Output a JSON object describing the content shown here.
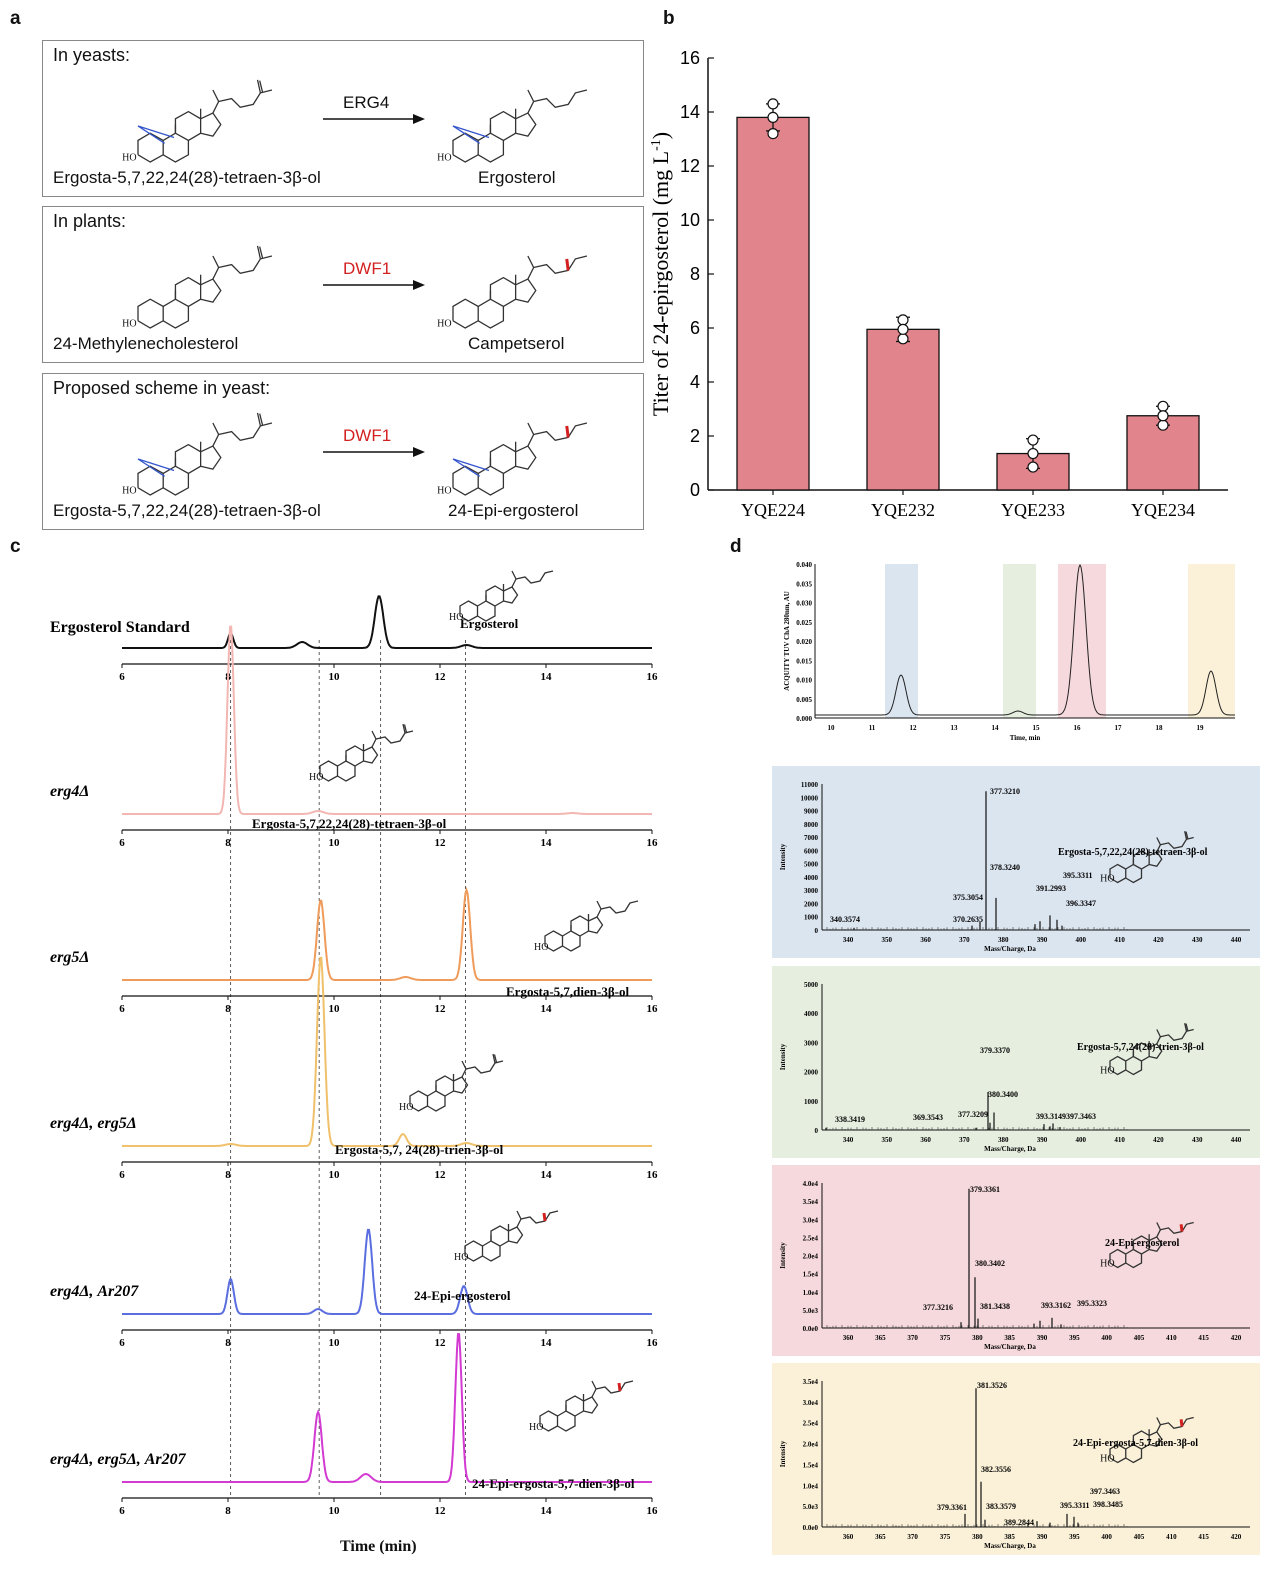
{
  "panel_labels": {
    "a": "a",
    "b": "b",
    "c": "c",
    "d": "d"
  },
  "panel_a": {
    "box1": {
      "header": "In yeasts:",
      "enzyme": "ERG4",
      "substrate": "Ergosta-5,7,22,24(28)-tetraen-3β-ol",
      "product": "Ergosterol",
      "ho": "HO"
    },
    "box2": {
      "header": "In plants:",
      "enzyme": "DWF1",
      "substrate": "24-Methylenecholesterol",
      "product": "Campetserol",
      "ho": "HO"
    },
    "box3": {
      "header": "Proposed scheme in yeast:",
      "enzyme": "DWF1",
      "substrate": "Ergosta-5,7,22,24(28)-tetraen-3β-ol",
      "product": "24-Epi-ergosterol",
      "ho": "HO"
    }
  },
  "panel_c": {
    "traces": [
      {
        "label": "Ergosterol Standard",
        "italic": false,
        "color": "#111111",
        "compound": "Ergosterol"
      },
      {
        "label": "erg4Δ",
        "italic": true,
        "color": "#f2b7b3",
        "compound": "Ergosta-5,7,22,24(28)-tetraen-3β-ol"
      },
      {
        "label": "erg5Δ",
        "italic": true,
        "color": "#ee9b5b",
        "compound": "Ergosta-5,7,dien-3β-ol"
      },
      {
        "label": "erg4Δ, erg5Δ",
        "italic": true,
        "color": "#f0c06a",
        "compound": "Ergosta-5,7, 24(28)-trien-3β-ol"
      },
      {
        "label": "erg4Δ, Ar207",
        "italic": true,
        "color": "#5a6ee0",
        "compound": "24-Epi-ergosterol"
      },
      {
        "label": "erg4Δ, erg5Δ, Ar207",
        "italic": true,
        "color": "#d23ad2",
        "compound": "24-Epi-ergosta-5,7-dien-3β-ol"
      }
    ],
    "ticks": [
      "6",
      "8",
      "10",
      "12",
      "14",
      "16"
    ],
    "xlabel": "Time (min)",
    "ho": "HO"
  },
  "panel_d": {
    "uv": {
      "ylabel": "ACQUITY TUV ChA 280nm, AU",
      "xlabel": "Time, min",
      "yticks": [
        "0.000",
        "0.005",
        "0.010",
        "0.015",
        "0.020",
        "0.025",
        "0.030",
        "0.035",
        "0.040"
      ],
      "xticks": [
        "10",
        "11",
        "12",
        "13",
        "14",
        "15",
        "16",
        "17",
        "18",
        "19"
      ]
    },
    "ms": [
      {
        "name": "Ergosta-5,7,22,24(28)-tetraen-3β-ol",
        "bg": "#dbe5f0",
        "yticks": [
          "0",
          "1000",
          "2000",
          "3000",
          "4000",
          "5000",
          "6000",
          "7000",
          "8000",
          "9000",
          "10000",
          "11000"
        ],
        "xticks": [
          "340",
          "350",
          "360",
          "370",
          "380",
          "390",
          "400",
          "410",
          "420",
          "430",
          "440"
        ],
        "peaks": [
          "377.3210",
          "378.3240",
          "375.3054",
          "370.2635",
          "340.3574",
          "391.2993",
          "395.3311",
          "396.3347"
        ]
      },
      {
        "name": "Ergosta-5,7,24(28)-trien-3β-ol",
        "bg": "#e6eedf",
        "yticks": [
          "0",
          "1000",
          "2000",
          "3000",
          "4000",
          "5000"
        ],
        "xticks": [
          "340",
          "350",
          "360",
          "370",
          "380",
          "390",
          "400",
          "410",
          "420",
          "430",
          "440"
        ],
        "peaks": [
          "379.3370",
          "380.3400",
          "338.3419",
          "369.3543",
          "377.3209",
          "393.3149",
          "397.3463"
        ]
      },
      {
        "name": "24-Epi-ergosterol",
        "bg": "#f5d9dc",
        "yticks": [
          "0.0e0",
          "5.0e3",
          "1.0e4",
          "1.5e4",
          "2.0e4",
          "2.5e4",
          "3.0e4",
          "3.5e4",
          "4.0e4"
        ],
        "xticks": [
          "360",
          "365",
          "370",
          "375",
          "380",
          "385",
          "390",
          "395",
          "400",
          "405",
          "410",
          "415",
          "420"
        ],
        "peaks": [
          "379.3361",
          "380.3402",
          "377.3216",
          "381.3438",
          "393.3162",
          "395.3323"
        ]
      },
      {
        "name": "24-Epi-ergosta-5,7-dien-3β-ol",
        "bg": "#fbf1d8",
        "yticks": [
          "0.0e0",
          "5.0e3",
          "1.0e4",
          "1.5e4",
          "2.0e4",
          "2.5e4",
          "3.0e4",
          "3.5e4"
        ],
        "xticks": [
          "360",
          "365",
          "370",
          "375",
          "380",
          "385",
          "390",
          "395",
          "400",
          "405",
          "410",
          "415",
          "420"
        ],
        "peaks": [
          "381.3526",
          "382.3556",
          "379.3361",
          "383.3579",
          "389.2844",
          "395.3311",
          "397.3463",
          "398.3485"
        ]
      }
    ],
    "ms_ylabel": "Intensity",
    "ms_xlabel": "Mass/Charge, Da"
  },
  "chart_data": {
    "type": "bar",
    "categories": [
      "YQE224",
      "YQE232",
      "YQE233",
      "YQE234"
    ],
    "values": [
      13.8,
      5.95,
      1.35,
      2.75
    ],
    "errors": [
      0.5,
      0.45,
      0.55,
      0.35
    ],
    "points": [
      [
        13.2,
        14.3,
        13.8
      ],
      [
        5.6,
        6.3,
        5.95
      ],
      [
        0.85,
        1.85,
        1.35
      ],
      [
        2.4,
        3.1,
        2.75
      ]
    ],
    "title": "",
    "xlabel": "",
    "ylabel": "Titer of 24-epirgosterol (mg L-1)",
    "ylim": [
      0,
      16
    ],
    "yticks": [
      "0",
      "2",
      "4",
      "6",
      "8",
      "10",
      "12",
      "14",
      "16"
    ],
    "bar_color": "#e2848c"
  }
}
